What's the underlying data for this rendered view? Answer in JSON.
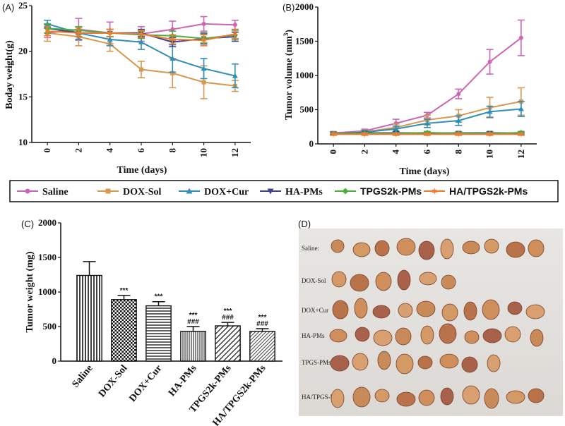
{
  "colors": {
    "Saline": "#cc66b3",
    "DOX-Sol": "#d9984f",
    "DOX+Cur": "#2f8fb8",
    "HA-PMs": "#40408a",
    "TPGS2k-PMs": "#4cae3c",
    "HA/TPGS2k-PMs": "#ee7a33"
  },
  "legend": [
    {
      "name": "Saline",
      "marker": "circle",
      "font": "serif"
    },
    {
      "name": "DOX-Sol",
      "marker": "square",
      "font": "serif"
    },
    {
      "name": "DOX+Cur",
      "marker": "triangle-up",
      "font": "serif"
    },
    {
      "name": "HA-PMs",
      "marker": "triangle-down",
      "font": "serif"
    },
    {
      "name": "TPGS2k-PMs",
      "marker": "diamond",
      "font": "sans"
    },
    {
      "name": "HA/TPGS2k-PMs",
      "marker": "star",
      "font": "sans"
    }
  ],
  "chart_data": [
    {
      "panel": "(A)",
      "type": "line",
      "xlabel": "Time (days)",
      "ylabel": "Boday weight(g)",
      "x": [
        0,
        2,
        4,
        6,
        8,
        10,
        12
      ],
      "xlim": [
        -1,
        13
      ],
      "ylim": [
        10,
        25
      ],
      "yticks": [
        10,
        15,
        20,
        25
      ],
      "series": [
        {
          "name": "Saline",
          "values": [
            22.0,
            22.4,
            22.0,
            21.9,
            22.4,
            23.0,
            22.9
          ],
          "errors": [
            0.5,
            1.2,
            1.2,
            0.8,
            0.9,
            0.8,
            0.5
          ]
        },
        {
          "name": "DOX-Sol",
          "values": [
            22.0,
            21.6,
            20.8,
            18.0,
            17.6,
            16.6,
            16.2
          ],
          "errors": [
            0.9,
            1.0,
            0.8,
            0.9,
            1.6,
            1.8,
            0.6
          ]
        },
        {
          "name": "DOX+Cur",
          "values": [
            23.0,
            22.0,
            21.3,
            21.0,
            19.2,
            18.1,
            17.3
          ],
          "errors": [
            0.4,
            0.7,
            0.7,
            0.8,
            1.5,
            1.1,
            1.3
          ]
        },
        {
          "name": "HA-PMs",
          "values": [
            22.5,
            22.0,
            22.0,
            22.0,
            21.0,
            21.4,
            21.6
          ],
          "errors": [
            0.5,
            0.4,
            0.4,
            0.4,
            0.5,
            0.6,
            0.5
          ]
        },
        {
          "name": "TPGS2k-PMs",
          "values": [
            22.5,
            22.3,
            22.0,
            21.8,
            21.7,
            21.4,
            21.8
          ],
          "errors": [
            0.5,
            0.4,
            0.4,
            0.4,
            0.5,
            0.5,
            0.5
          ]
        },
        {
          "name": "HA/TPGS2k-PMs",
          "values": [
            22.2,
            22.0,
            22.0,
            21.9,
            21.3,
            21.2,
            21.9
          ],
          "errors": [
            0.5,
            0.4,
            0.4,
            0.4,
            0.5,
            0.6,
            0.5
          ]
        }
      ]
    },
    {
      "panel": "(B)",
      "type": "line",
      "xlabel": "Time (days)",
      "ylabel_main": "Tumor volume (mm",
      "ylabel_sup": "3",
      "ylabel_end": ")",
      "x": [
        0,
        2,
        4,
        6,
        8,
        10,
        12
      ],
      "xlim": [
        -1,
        13
      ],
      "ylim": [
        0,
        2000
      ],
      "yticks": [
        0,
        500,
        1000,
        1500,
        2000
      ],
      "series": [
        {
          "name": "Saline",
          "values": [
            160,
            190,
            300,
            420,
            730,
            1200,
            1550
          ],
          "errors": [
            20,
            25,
            60,
            40,
            70,
            180,
            260
          ]
        },
        {
          "name": "DOX-Sol",
          "values": [
            150,
            175,
            240,
            350,
            410,
            530,
            620
          ],
          "errors": [
            20,
            25,
            50,
            70,
            90,
            150,
            200
          ]
        },
        {
          "name": "DOX+Cur",
          "values": [
            150,
            170,
            220,
            300,
            340,
            470,
            510
          ],
          "errors": [
            20,
            25,
            40,
            60,
            70,
            80,
            110
          ]
        },
        {
          "name": "HA-PMs",
          "values": [
            150,
            160,
            160,
            160,
            160,
            160,
            160
          ],
          "errors": [
            15,
            15,
            15,
            15,
            15,
            15,
            15
          ]
        },
        {
          "name": "TPGS2k-PMs",
          "values": [
            150,
            155,
            150,
            165,
            155,
            150,
            165
          ],
          "errors": [
            15,
            15,
            15,
            15,
            15,
            15,
            15
          ]
        },
        {
          "name": "HA/TPGS2k-PMs",
          "values": [
            140,
            140,
            140,
            140,
            140,
            140,
            140
          ],
          "errors": [
            15,
            15,
            15,
            15,
            15,
            15,
            15
          ]
        }
      ]
    },
    {
      "panel": "(C)",
      "type": "bar",
      "ylabel": "Tumor weight (mg)",
      "ylim": [
        0,
        2000
      ],
      "yticks": [
        0,
        500,
        1000,
        1500,
        2000
      ],
      "categories": [
        "Saline",
        "DOX-Sol",
        "DOX+Cur",
        "HA-PMs",
        "TPGS2k-PMs",
        "HA/TPGS2k-PMs"
      ],
      "values": [
        1240,
        890,
        800,
        430,
        510,
        430
      ],
      "errors": [
        200,
        60,
        60,
        70,
        50,
        40
      ],
      "significance": [
        "",
        "***",
        "***",
        "***\n###",
        "***\n###",
        "***\n###"
      ],
      "patterns": [
        "vertical",
        "checker",
        "horizontal",
        "vertical-thin",
        "diagonal",
        "diagonal-dense"
      ]
    }
  ],
  "photo": {
    "panel": "(D)",
    "rows": [
      {
        "label": "Saline:",
        "count": 10
      },
      {
        "label": "DOX-Sol",
        "count": 6
      },
      {
        "label": "DOX+Cur",
        "count": 10
      },
      {
        "label": "HA-PMs",
        "count": 10
      },
      {
        "label": "TPGS-PMs",
        "count": 8
      },
      {
        "label": "HA/TPGS-PMs",
        "count": 10
      }
    ]
  }
}
